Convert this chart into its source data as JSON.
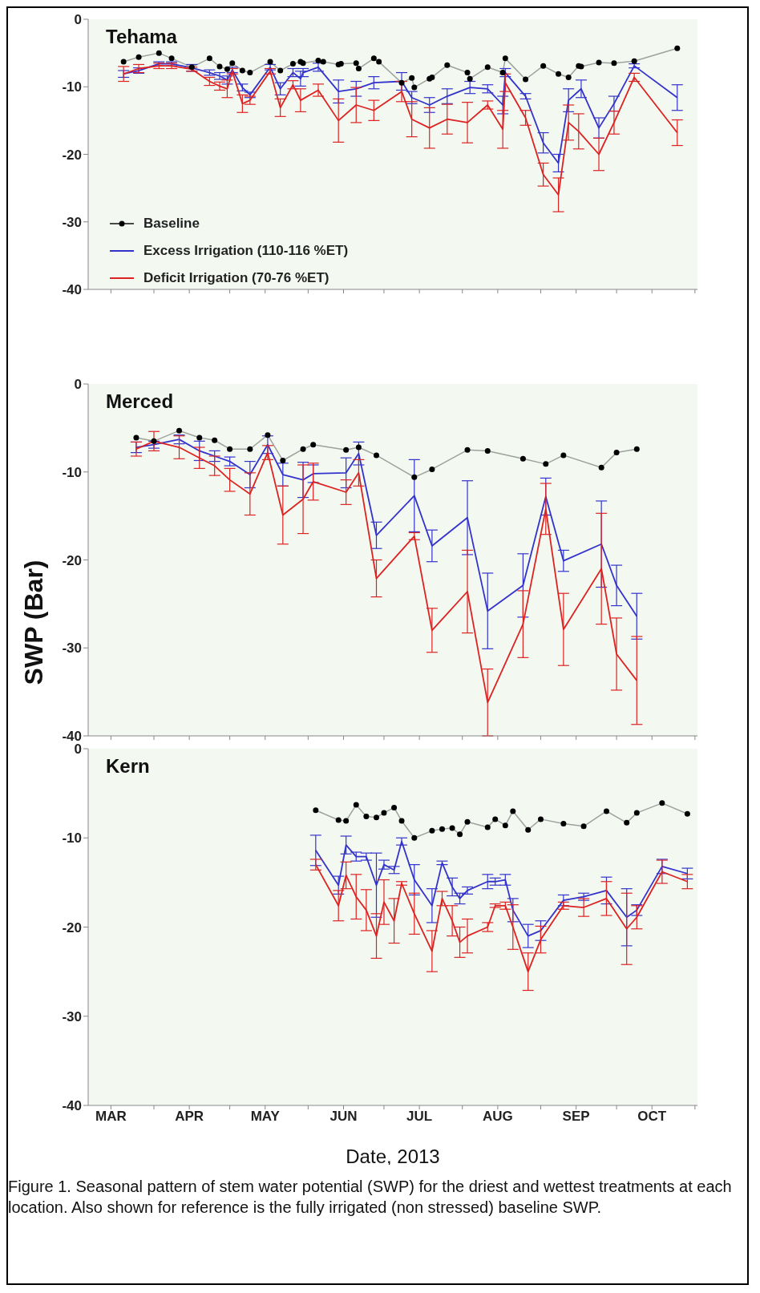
{
  "chart_data": [
    {
      "type": "line",
      "title": "Tehama",
      "xlim": [
        "2013-03-06",
        "2013-11-02"
      ],
      "ylim": [
        -40,
        0
      ],
      "yticks": [
        0,
        -10,
        -20,
        -30,
        -40
      ],
      "tick_labels": "y",
      "legend": "bottom left",
      "xticks": [
        {
          "value": "2013-03-15",
          "label": null
        },
        {
          "value": "2013-04-01",
          "label": null
        },
        {
          "value": "2013-04-15",
          "label": null
        },
        {
          "value": "2013-05-01",
          "label": null
        },
        {
          "value": "2013-05-15",
          "label": null
        },
        {
          "value": "2013-06-01",
          "label": null
        },
        {
          "value": "2013-06-15",
          "label": null
        },
        {
          "value": "2013-07-01",
          "label": null
        },
        {
          "value": "2013-07-15",
          "label": null
        },
        {
          "value": "2013-08-01",
          "label": null
        },
        {
          "value": "2013-08-15",
          "label": null
        },
        {
          "value": "2013-09-01",
          "label": null
        },
        {
          "value": "2013-09-15",
          "label": null
        },
        {
          "value": "2013-10-01",
          "label": null
        },
        {
          "value": "2013-10-15",
          "label": null
        },
        {
          "value": "2013-11-01",
          "label": null
        }
      ],
      "series": [
        {
          "name": "Baseline",
          "color": "#000000",
          "marker": "circle",
          "x": [
            "2013-03-20",
            "2013-03-26",
            "2013-04-03",
            "2013-04-08",
            "2013-04-16",
            "2013-04-23",
            "2013-04-27",
            "2013-04-30",
            "2013-05-02",
            "2013-05-06",
            "2013-05-09",
            "2013-05-17",
            "2013-05-21",
            "2013-05-26",
            "2013-05-29",
            "2013-05-30",
            "2013-06-05",
            "2013-06-07",
            "2013-06-13",
            "2013-06-14",
            "2013-06-20",
            "2013-06-21",
            "2013-06-27",
            "2013-06-29",
            "2013-07-08",
            "2013-07-12",
            "2013-07-13",
            "2013-07-19",
            "2013-07-20",
            "2013-07-26",
            "2013-08-03",
            "2013-08-04",
            "2013-08-11",
            "2013-08-17",
            "2013-08-18",
            "2013-08-26",
            "2013-09-02",
            "2013-09-08",
            "2013-09-12",
            "2013-09-16",
            "2013-09-17",
            "2013-09-24",
            "2013-09-30",
            "2013-10-08",
            "2013-10-25"
          ],
          "values": [
            -6.3,
            -5.6,
            -5.0,
            -5.8,
            -7.1,
            -5.8,
            -7.0,
            -7.4,
            -6.5,
            -7.6,
            -7.9,
            -6.3,
            -7.6,
            -6.6,
            -6.3,
            -6.5,
            -6.1,
            -6.3,
            -6.7,
            -6.6,
            -6.5,
            -7.3,
            -5.8,
            -6.3,
            -9.4,
            -8.7,
            -10.1,
            -8.8,
            -8.6,
            -6.8,
            -7.9,
            -8.8,
            -7.1,
            -7.9,
            -5.8,
            -8.9,
            -6.9,
            -8.1,
            -8.6,
            -6.9,
            -7.0,
            -6.4,
            -6.5,
            -6.2,
            -4.3
          ]
        },
        {
          "name": "Excess Irrigation (110-116 %ET)",
          "color": "#3333cc",
          "marker": "none",
          "x": [
            "2013-03-20",
            "2013-03-26",
            "2013-04-03",
            "2013-04-08",
            "2013-04-16",
            "2013-04-23",
            "2013-04-27",
            "2013-04-30",
            "2013-05-02",
            "2013-05-06",
            "2013-05-09",
            "2013-05-17",
            "2013-05-21",
            "2013-05-26",
            "2013-05-29",
            "2013-05-30",
            "2013-06-05",
            "2013-06-13",
            "2013-06-20",
            "2013-06-27",
            "2013-07-08",
            "2013-07-12",
            "2013-07-19",
            "2013-07-26",
            "2013-08-04",
            "2013-08-11",
            "2013-08-17",
            "2013-08-18",
            "2013-08-26",
            "2013-09-02",
            "2013-09-08",
            "2013-09-12",
            "2013-09-17",
            "2013-09-24",
            "2013-09-30",
            "2013-10-08",
            "2013-10-25"
          ],
          "values": [
            -8.1,
            -7.6,
            -6.6,
            -6.6,
            -7.2,
            -7.9,
            -8.4,
            -9.0,
            -7.5,
            -10.1,
            -11.2,
            -7.1,
            -10.3,
            -7.9,
            -8.8,
            -7.9,
            -7.1,
            -10.7,
            -10.3,
            -9.4,
            -9.2,
            -11.6,
            -12.7,
            -11.4,
            -10.1,
            -10.3,
            -12.7,
            -7.9,
            -11.4,
            -18.3,
            -21.3,
            -12.0,
            -10.3,
            -16.1,
            -12.5,
            -6.9,
            -11.6
          ],
          "errors": [
            0.5,
            0.4,
            0.3,
            0.3,
            0.5,
            0.4,
            0.5,
            0.6,
            0.4,
            0.5,
            0.4,
            0.4,
            0.9,
            0.6,
            1.1,
            0.6,
            0.6,
            1.7,
            1.1,
            0.9,
            1.3,
            0.9,
            1.1,
            1.1,
            0.9,
            0.6,
            1.3,
            0.6,
            0.4,
            1.5,
            1.3,
            1.7,
            1.3,
            1.5,
            1.1,
            0.3,
            1.9
          ]
        },
        {
          "name": "Deficit Irrigation (70-76 %ET)",
          "color": "#dd2222",
          "marker": "none",
          "x": [
            "2013-03-20",
            "2013-03-26",
            "2013-04-03",
            "2013-04-08",
            "2013-04-16",
            "2013-04-23",
            "2013-04-27",
            "2013-04-30",
            "2013-05-02",
            "2013-05-06",
            "2013-05-09",
            "2013-05-17",
            "2013-05-21",
            "2013-05-26",
            "2013-05-29",
            "2013-06-05",
            "2013-06-13",
            "2013-06-20",
            "2013-06-27",
            "2013-07-08",
            "2013-07-12",
            "2013-07-19",
            "2013-07-26",
            "2013-08-03",
            "2013-08-11",
            "2013-08-17",
            "2013-08-18",
            "2013-08-26",
            "2013-09-02",
            "2013-09-08",
            "2013-09-12",
            "2013-09-16",
            "2013-09-24",
            "2013-09-30",
            "2013-10-08",
            "2013-10-25"
          ],
          "values": [
            -8.1,
            -7.3,
            -6.9,
            -6.9,
            -7.4,
            -9.2,
            -9.9,
            -10.3,
            -7.7,
            -12.5,
            -12.0,
            -7.7,
            -13.1,
            -9.7,
            -12.0,
            -10.5,
            -15.0,
            -12.7,
            -13.5,
            -10.7,
            -14.8,
            -16.1,
            -14.8,
            -15.3,
            -12.7,
            -16.3,
            -9.4,
            -14.6,
            -23.0,
            -26.0,
            -15.3,
            -16.6,
            -20.0,
            -15.3,
            -8.6,
            -16.8
          ],
          "errors": [
            1.1,
            0.6,
            0.4,
            0.4,
            0.3,
            0.6,
            0.6,
            1.3,
            0.4,
            1.3,
            0.6,
            0.4,
            1.3,
            0.6,
            1.7,
            0.9,
            3.2,
            2.6,
            1.5,
            1.5,
            2.6,
            3.0,
            2.2,
            3.0,
            0.6,
            2.8,
            1.3,
            1.1,
            1.7,
            2.5,
            2.6,
            2.6,
            2.4,
            1.7,
            0.6,
            1.9
          ]
        }
      ]
    },
    {
      "type": "line",
      "title": "Merced",
      "ylabel": "SWP (Bar)",
      "xlim": [
        "2013-03-06",
        "2013-11-02"
      ],
      "ylim": [
        -40,
        0
      ],
      "yticks": [
        0,
        -10,
        -20,
        -30,
        -40
      ],
      "tick_labels": "y",
      "xticks": [
        {
          "value": "2013-03-15",
          "label": null
        },
        {
          "value": "2013-04-01",
          "label": null
        },
        {
          "value": "2013-04-15",
          "label": null
        },
        {
          "value": "2013-05-01",
          "label": null
        },
        {
          "value": "2013-05-15",
          "label": null
        },
        {
          "value": "2013-06-01",
          "label": null
        },
        {
          "value": "2013-06-15",
          "label": null
        },
        {
          "value": "2013-07-01",
          "label": null
        },
        {
          "value": "2013-07-15",
          "label": null
        },
        {
          "value": "2013-08-01",
          "label": null
        },
        {
          "value": "2013-08-15",
          "label": null
        },
        {
          "value": "2013-09-01",
          "label": null
        },
        {
          "value": "2013-09-15",
          "label": null
        },
        {
          "value": "2013-10-01",
          "label": null
        },
        {
          "value": "2013-10-15",
          "label": null
        },
        {
          "value": "2013-11-01",
          "label": null
        }
      ],
      "series": [
        {
          "color": "#000000",
          "marker": "circle",
          "x": [
            "2013-03-25",
            "2013-04-01",
            "2013-04-11",
            "2013-04-19",
            "2013-04-25",
            "2013-05-01",
            "2013-05-09",
            "2013-05-16",
            "2013-05-22",
            "2013-05-30",
            "2013-06-03",
            "2013-06-16",
            "2013-06-21",
            "2013-06-28",
            "2013-07-13",
            "2013-07-20",
            "2013-08-03",
            "2013-08-11",
            "2013-08-25",
            "2013-09-03",
            "2013-09-10",
            "2013-09-25",
            "2013-10-01",
            "2013-10-09"
          ],
          "values": [
            -6.1,
            -6.5,
            -5.3,
            -6.1,
            -6.4,
            -7.4,
            -7.4,
            -5.8,
            -8.7,
            -7.4,
            -6.9,
            -7.5,
            -7.2,
            -8.1,
            -10.6,
            -9.7,
            -7.5,
            -7.6,
            -8.5,
            -9.1,
            -8.1,
            -9.5,
            -7.8,
            -7.4
          ]
        },
        {
          "color": "#3333cc",
          "marker": "none",
          "x": [
            "2013-03-25",
            "2013-04-01",
            "2013-04-11",
            "2013-04-19",
            "2013-04-25",
            "2013-05-01",
            "2013-05-09",
            "2013-05-16",
            "2013-05-22",
            "2013-05-30",
            "2013-06-03",
            "2013-06-16",
            "2013-06-21",
            "2013-06-28",
            "2013-07-13",
            "2013-07-20",
            "2013-08-03",
            "2013-08-11",
            "2013-08-25",
            "2013-09-03",
            "2013-09-10",
            "2013-09-25",
            "2013-10-01",
            "2013-10-09"
          ],
          "values": [
            -7.2,
            -6.9,
            -6.3,
            -7.6,
            -8.2,
            -8.8,
            -10.3,
            -6.9,
            -10.3,
            -10.9,
            -10.2,
            -10.1,
            -7.9,
            -17.2,
            -12.7,
            -18.4,
            -15.2,
            -25.8,
            -22.9,
            -12.8,
            -20.1,
            -18.2,
            -22.9,
            -26.4
          ],
          "errors": [
            0.6,
            0.4,
            0.5,
            1.1,
            0.6,
            0.5,
            1.5,
            1.0,
            1.3,
            2.0,
            1.0,
            1.7,
            1.3,
            1.5,
            4.1,
            1.8,
            4.2,
            4.3,
            3.6,
            2.1,
            1.2,
            4.9,
            2.3,
            2.6
          ]
        },
        {
          "color": "#dd2222",
          "marker": "none",
          "x": [
            "2013-03-25",
            "2013-04-01",
            "2013-04-11",
            "2013-04-19",
            "2013-04-25",
            "2013-05-01",
            "2013-05-09",
            "2013-05-16",
            "2013-05-22",
            "2013-05-30",
            "2013-06-03",
            "2013-06-16",
            "2013-06-21",
            "2013-06-28",
            "2013-07-13",
            "2013-07-20",
            "2013-08-03",
            "2013-08-11",
            "2013-08-25",
            "2013-09-03",
            "2013-09-10",
            "2013-09-25",
            "2013-10-01",
            "2013-10-09"
          ],
          "values": [
            -7.4,
            -6.5,
            -7.2,
            -8.4,
            -9.3,
            -10.9,
            -12.5,
            -7.8,
            -14.9,
            -13.1,
            -11.1,
            -12.3,
            -10.1,
            -22.1,
            -17.3,
            -28.0,
            -23.6,
            -36.2,
            -27.3,
            -14.2,
            -27.9,
            -21.0,
            -30.7,
            -33.7
          ],
          "errors": [
            0.8,
            1.1,
            1.3,
            1.2,
            1.1,
            1.3,
            2.4,
            0.8,
            3.3,
            3.9,
            2.1,
            1.4,
            1.5,
            2.1,
            0.4,
            2.5,
            4.7,
            3.8,
            3.8,
            2.9,
            4.1,
            6.3,
            4.1,
            5.0
          ]
        }
      ]
    },
    {
      "type": "line",
      "title": "Kern",
      "xlabel": "Date, 2013",
      "xlim": [
        "2013-03-06",
        "2013-11-02"
      ],
      "ylim": [
        -40,
        0
      ],
      "yticks": [
        0,
        -10,
        -20,
        -30,
        -40
      ],
      "xticks": [
        {
          "value": "2013-03-15",
          "label": "MAR"
        },
        {
          "value": "2013-04-01",
          "label": null
        },
        {
          "value": "2013-04-15",
          "label": "APR"
        },
        {
          "value": "2013-05-01",
          "label": null
        },
        {
          "value": "2013-05-15",
          "label": "MAY"
        },
        {
          "value": "2013-06-01",
          "label": null
        },
        {
          "value": "2013-06-15",
          "label": "JUN"
        },
        {
          "value": "2013-07-01",
          "label": null
        },
        {
          "value": "2013-07-15",
          "label": "JUL"
        },
        {
          "value": "2013-08-01",
          "label": null
        },
        {
          "value": "2013-08-15",
          "label": "AUG"
        },
        {
          "value": "2013-09-01",
          "label": null
        },
        {
          "value": "2013-09-15",
          "label": "SEP"
        },
        {
          "value": "2013-10-01",
          "label": null
        },
        {
          "value": "2013-10-15",
          "label": "OCT"
        },
        {
          "value": "2013-11-01",
          "label": null
        }
      ],
      "annotations": [
        "Figure 1. Seasonal pattern of stem water potential (SWP) for the driest and wettest treatments at each location.  Also shown for reference is the fully irrigated (non stressed) baseline SWP."
      ],
      "series": [
        {
          "color": "#000000",
          "marker": "circle",
          "x": [
            "2013-06-04",
            "2013-06-13",
            "2013-06-16",
            "2013-06-20",
            "2013-06-24",
            "2013-06-28",
            "2013-07-01",
            "2013-07-05",
            "2013-07-08",
            "2013-07-13",
            "2013-07-20",
            "2013-07-24",
            "2013-07-28",
            "2013-07-31",
            "2013-08-03",
            "2013-08-11",
            "2013-08-14",
            "2013-08-18",
            "2013-08-21",
            "2013-08-27",
            "2013-09-01",
            "2013-09-10",
            "2013-09-18",
            "2013-09-27",
            "2013-10-05",
            "2013-10-09",
            "2013-10-19",
            "2013-10-29"
          ],
          "values": [
            -6.9,
            -8.0,
            -8.1,
            -6.3,
            -7.6,
            -7.7,
            -7.2,
            -6.6,
            -8.1,
            -10.0,
            -9.2,
            -9.0,
            -8.9,
            -9.6,
            -8.2,
            -8.8,
            -7.9,
            -8.6,
            -7.0,
            -9.1,
            -7.9,
            -8.4,
            -8.7,
            -7.0,
            -8.3,
            -7.2,
            -6.1,
            -7.3
          ]
        },
        {
          "color": "#3333cc",
          "marker": "none",
          "x": [
            "2013-06-04",
            "2013-06-13",
            "2013-06-16",
            "2013-06-20",
            "2013-06-24",
            "2013-06-28",
            "2013-07-01",
            "2013-07-05",
            "2013-07-08",
            "2013-07-13",
            "2013-07-20",
            "2013-07-24",
            "2013-07-28",
            "2013-07-31",
            "2013-08-03",
            "2013-08-11",
            "2013-08-14",
            "2013-08-18",
            "2013-08-21",
            "2013-08-27",
            "2013-09-01",
            "2013-09-10",
            "2013-09-18",
            "2013-09-27",
            "2013-10-05",
            "2013-10-09",
            "2013-10-19",
            "2013-10-29"
          ],
          "values": [
            -11.4,
            -15.3,
            -10.8,
            -12.1,
            -12.1,
            -15.3,
            -13.0,
            -13.6,
            -10.4,
            -14.7,
            -17.6,
            -12.8,
            -15.5,
            -16.8,
            -15.9,
            -14.9,
            -14.9,
            -14.7,
            -18.1,
            -21.0,
            -20.4,
            -17.0,
            -16.6,
            -15.9,
            -18.9,
            -18.1,
            -13.2,
            -14.0
          ],
          "errors": [
            1.7,
            1.0,
            1.0,
            0.5,
            0.4,
            3.6,
            0.5,
            0.4,
            0.4,
            1.7,
            1.9,
            0.2,
            1.0,
            0.6,
            0.4,
            0.8,
            0.4,
            0.6,
            1.3,
            1.3,
            1.1,
            0.6,
            0.4,
            1.5,
            3.2,
            0.6,
            0.8,
            0.6
          ]
        },
        {
          "color": "#dd2222",
          "marker": "none",
          "x": [
            "2013-06-04",
            "2013-06-13",
            "2013-06-16",
            "2013-06-20",
            "2013-06-24",
            "2013-06-28",
            "2013-07-01",
            "2013-07-05",
            "2013-07-08",
            "2013-07-13",
            "2013-07-20",
            "2013-07-24",
            "2013-07-28",
            "2013-07-31",
            "2013-08-03",
            "2013-08-11",
            "2013-08-14",
            "2013-08-18",
            "2013-08-21",
            "2013-08-27",
            "2013-09-01",
            "2013-09-10",
            "2013-09-18",
            "2013-09-27",
            "2013-10-05",
            "2013-10-09",
            "2013-10-19",
            "2013-10-29"
          ],
          "values": [
            -13.0,
            -17.6,
            -14.2,
            -16.6,
            -18.1,
            -21.0,
            -17.2,
            -19.3,
            -15.1,
            -18.5,
            -22.7,
            -16.8,
            -19.3,
            -21.7,
            -21.0,
            -20.0,
            -17.6,
            -17.6,
            -20.0,
            -25.0,
            -21.4,
            -17.6,
            -17.8,
            -16.8,
            -20.2,
            -18.9,
            -13.8,
            -14.9
          ],
          "errors": [
            0.6,
            1.7,
            1.5,
            2.5,
            2.3,
            2.5,
            2.5,
            2.5,
            0.2,
            2.3,
            2.3,
            0.8,
            1.7,
            1.7,
            1.9,
            0.5,
            0.2,
            0.4,
            2.5,
            2.1,
            1.5,
            0.4,
            1.0,
            1.9,
            4.0,
            1.3,
            1.3,
            0.8
          ]
        }
      ]
    }
  ]
}
